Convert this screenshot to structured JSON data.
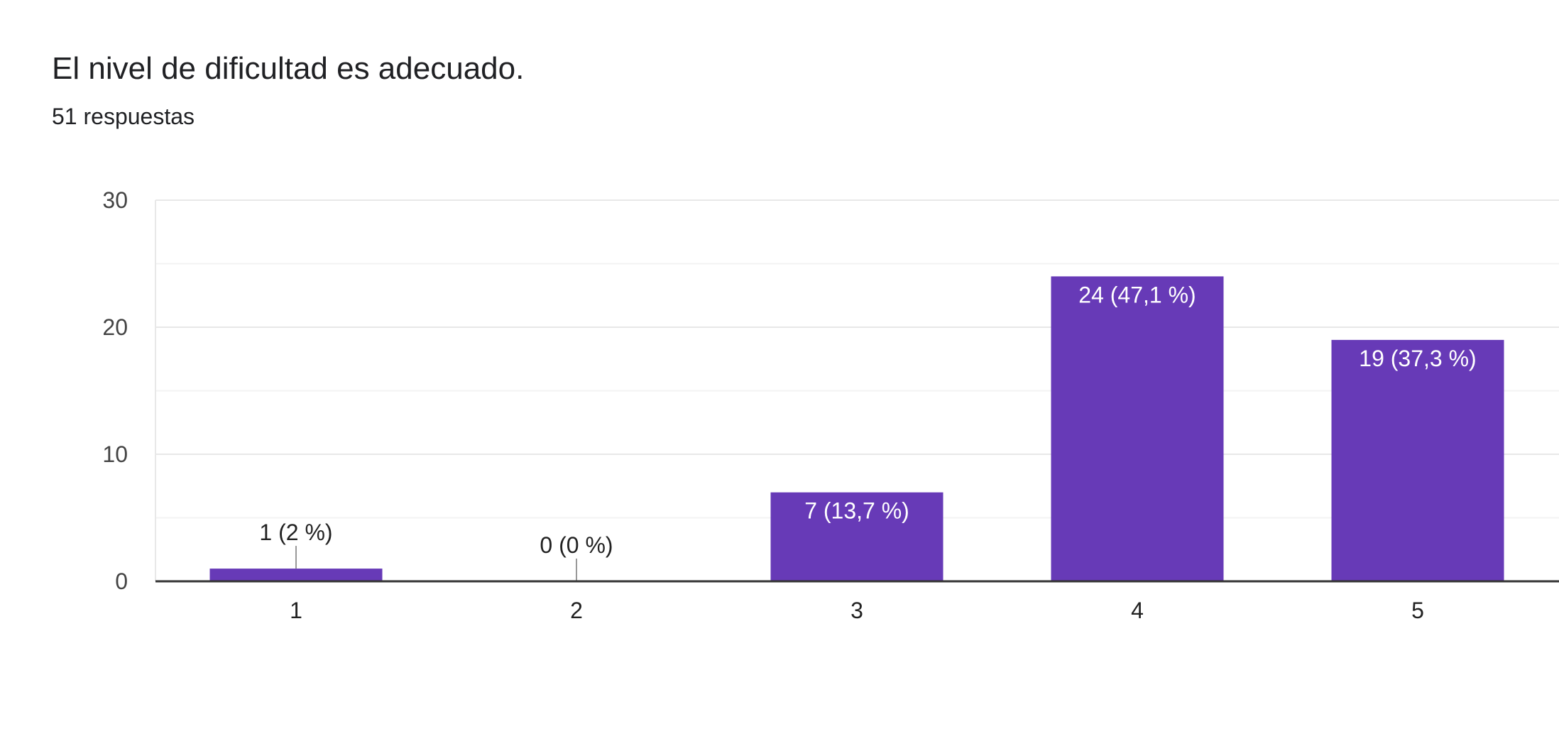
{
  "header": {
    "title": "El nivel de dificultad es adecuado.",
    "responses": "51 respuestas"
  },
  "colors": {
    "bar": "#673ab7",
    "grid": "#e8e8e8",
    "axis": "#333333"
  },
  "chart_data": {
    "type": "bar",
    "categories": [
      "1",
      "2",
      "3",
      "4",
      "5"
    ],
    "values": [
      1,
      0,
      7,
      24,
      19
    ],
    "data_labels": [
      "1 (2 %)",
      "0 (0 %)",
      "7 (13,7 %)",
      "24 (47,1 %)",
      "19 (37,3 %)"
    ],
    "ylim": [
      0,
      30
    ],
    "yticks": [
      "0",
      "10",
      "20",
      "30"
    ],
    "grid": true,
    "legend": "none"
  }
}
